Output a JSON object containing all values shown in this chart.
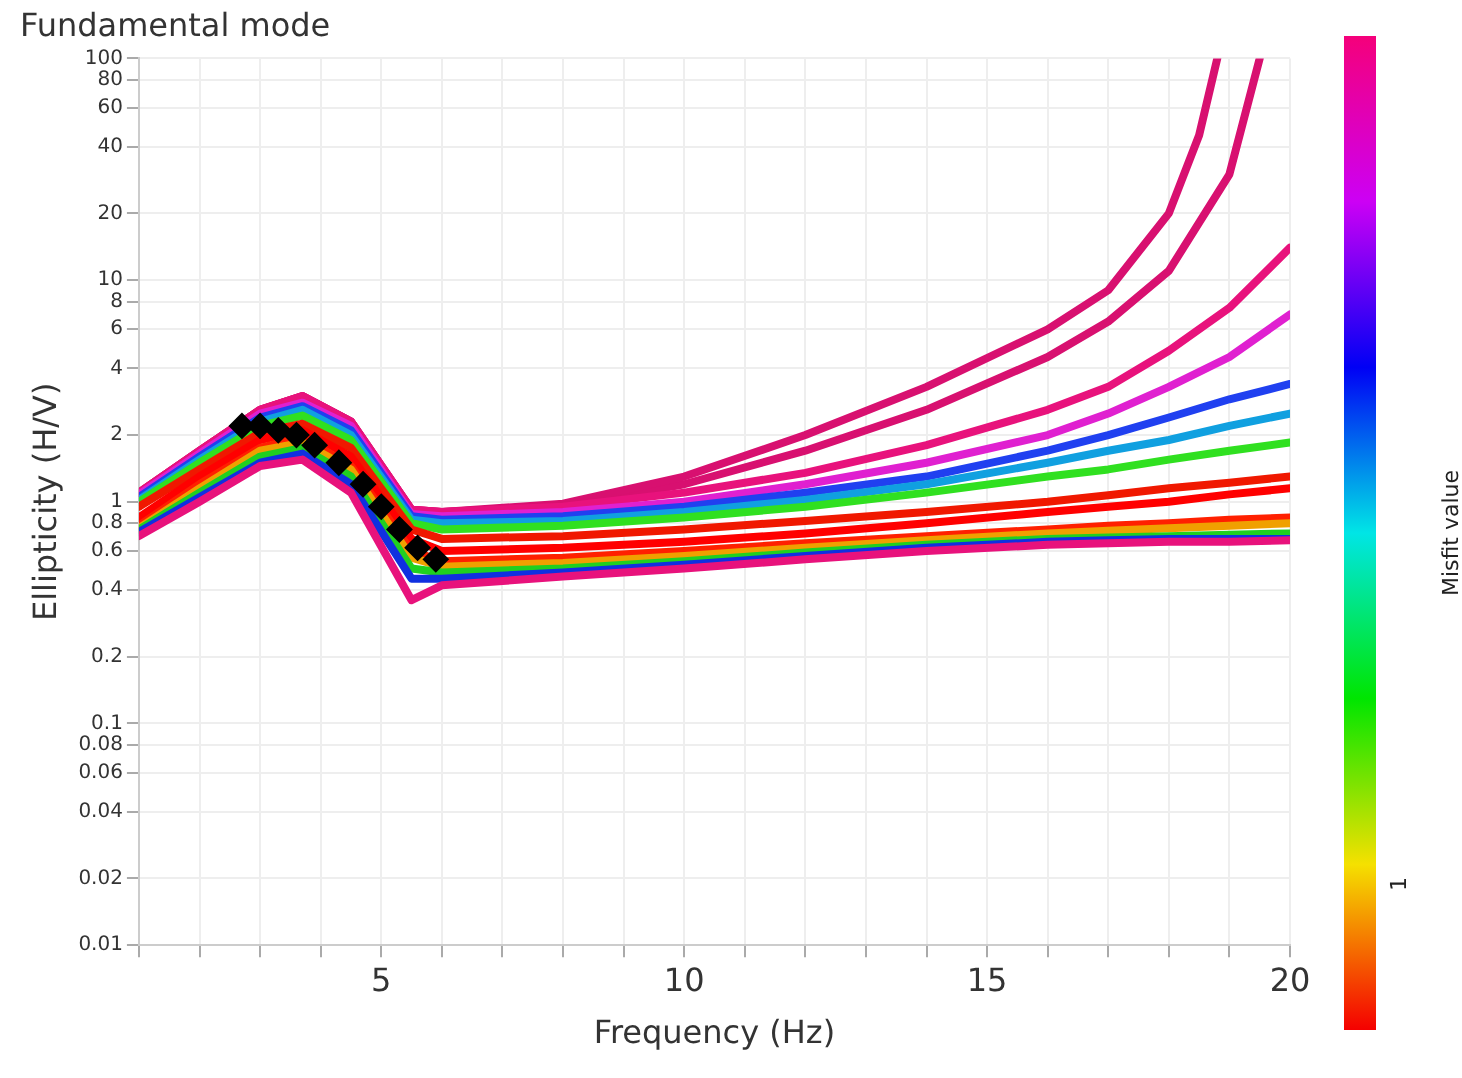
{
  "chart_data": {
    "type": "line",
    "title": "Fundamental mode",
    "xlabel": "Frequency (Hz)",
    "ylabel": "Ellipticity (H/V)",
    "clabel": "Misfit value",
    "x": [
      1,
      2,
      3,
      3.7,
      4.5,
      5.5,
      6,
      8,
      10,
      12,
      14,
      16,
      17,
      18,
      19,
      20
    ],
    "xlim": [
      1,
      20
    ],
    "xticks": [
      {
        "value": 1,
        "label": null
      },
      {
        "value": 2,
        "label": null
      },
      {
        "value": 3,
        "label": null
      },
      {
        "value": 4,
        "label": null
      },
      5,
      {
        "value": 6,
        "label": null
      },
      {
        "value": 7,
        "label": null
      },
      {
        "value": 8,
        "label": null
      },
      {
        "value": 9,
        "label": null
      },
      10,
      {
        "value": 11,
        "label": null
      },
      {
        "value": 12,
        "label": null
      },
      {
        "value": 13,
        "label": null
      },
      {
        "value": 14,
        "label": null
      },
      15,
      {
        "value": 16,
        "label": null
      },
      {
        "value": 17,
        "label": null
      },
      {
        "value": 18,
        "label": null
      },
      {
        "value": 19,
        "label": null
      },
      20
    ],
    "ylim": [
      0.01,
      100
    ],
    "yticks": [
      0.01,
      0.02,
      0.04,
      0.06,
      0.08,
      0.1,
      0.2,
      0.4,
      0.6,
      0.8,
      1,
      2,
      4,
      6,
      8,
      10,
      20,
      40,
      60,
      80,
      100
    ],
    "log": "y",
    "grid": true,
    "legend": false,
    "marker": "none",
    "annotations": [
      "1"
    ],
    "series": [
      {
        "color": "#e8127c",
        "values": [
          0.7,
          1.0,
          1.45,
          1.55,
          1.1,
          0.36,
          0.42,
          0.46,
          0.5,
          0.55,
          0.6,
          0.64,
          0.65,
          0.66,
          0.66,
          0.67
        ]
      },
      {
        "color": "#1030e0",
        "values": [
          0.73,
          1.05,
          1.5,
          1.65,
          1.2,
          0.45,
          0.45,
          0.48,
          0.52,
          0.57,
          0.62,
          0.66,
          0.67,
          0.68,
          0.68,
          0.68
        ]
      },
      {
        "color": "#20d020",
        "values": [
          0.75,
          1.1,
          1.6,
          1.75,
          1.3,
          0.5,
          0.48,
          0.5,
          0.54,
          0.59,
          0.64,
          0.68,
          0.69,
          0.7,
          0.71,
          0.72
        ]
      },
      {
        "color": "#f0a000",
        "values": [
          0.76,
          1.15,
          1.7,
          1.85,
          1.4,
          0.56,
          0.51,
          0.53,
          0.57,
          0.62,
          0.67,
          0.72,
          0.74,
          0.76,
          0.78,
          0.8
        ]
      },
      {
        "color": "#ff2000",
        "values": [
          0.78,
          1.2,
          1.75,
          1.95,
          1.45,
          0.6,
          0.54,
          0.56,
          0.6,
          0.65,
          0.7,
          0.75,
          0.78,
          0.8,
          0.83,
          0.85
        ]
      },
      {
        "color": "#ff0000",
        "values": [
          0.85,
          1.3,
          1.9,
          2.1,
          1.6,
          0.68,
          0.6,
          0.62,
          0.66,
          0.72,
          0.8,
          0.9,
          0.95,
          1.0,
          1.08,
          1.15
        ]
      },
      {
        "color": "#f01800",
        "values": [
          0.95,
          1.4,
          2.05,
          2.25,
          1.75,
          0.75,
          0.68,
          0.7,
          0.75,
          0.82,
          0.9,
          1.0,
          1.07,
          1.15,
          1.22,
          1.3
        ]
      },
      {
        "color": "#30e020",
        "values": [
          1.0,
          1.5,
          2.2,
          2.45,
          1.9,
          0.8,
          0.75,
          0.78,
          0.85,
          0.95,
          1.1,
          1.3,
          1.4,
          1.55,
          1.7,
          1.85
        ]
      },
      {
        "color": "#10a0e0",
        "values": [
          1.02,
          1.55,
          2.3,
          2.6,
          2.0,
          0.83,
          0.8,
          0.82,
          0.9,
          1.02,
          1.2,
          1.5,
          1.7,
          1.9,
          2.2,
          2.5
        ]
      },
      {
        "color": "#2040f0",
        "values": [
          1.05,
          1.6,
          2.4,
          2.7,
          2.1,
          0.86,
          0.83,
          0.86,
          0.95,
          1.1,
          1.3,
          1.7,
          2.0,
          2.4,
          2.9,
          3.4
        ]
      },
      {
        "color": "#e020d0",
        "values": [
          1.08,
          1.65,
          2.5,
          2.8,
          2.2,
          0.88,
          0.86,
          0.9,
          1.0,
          1.2,
          1.5,
          2.0,
          2.5,
          3.3,
          4.5,
          7
        ]
      },
      {
        "color": "#e8127c",
        "values": [
          1.1,
          1.7,
          2.6,
          3.0,
          2.3,
          0.92,
          0.9,
          0.95,
          1.1,
          1.35,
          1.8,
          2.6,
          3.3,
          4.8,
          7.5,
          14
        ]
      },
      {
        "color": "#d81070",
        "x": [
          1,
          2,
          3,
          3.7,
          4.5,
          5.5,
          6,
          8,
          10,
          12,
          14,
          16,
          17,
          18,
          18.5,
          18.8
        ],
        "values": [
          1.1,
          1.7,
          2.6,
          3.0,
          2.3,
          0.92,
          0.9,
          0.98,
          1.3,
          2.0,
          3.3,
          6,
          9,
          20,
          45,
          100
        ]
      },
      {
        "color": "#d81070",
        "x": [
          1,
          2,
          3,
          3.7,
          4.5,
          5.5,
          6,
          8,
          10,
          12,
          14,
          16,
          17,
          18,
          19,
          19.5
        ],
        "values": [
          1.1,
          1.7,
          2.6,
          3.0,
          2.3,
          0.92,
          0.9,
          0.96,
          1.2,
          1.7,
          2.6,
          4.5,
          6.5,
          11,
          30,
          100
        ]
      },
      {
        "type": "scatter",
        "marker": "diamond",
        "color": "#000000",
        "x": [
          2.7,
          3.0,
          3.3,
          3.6,
          3.9,
          4.3,
          4.7,
          5.0,
          5.3,
          5.6,
          5.9
        ],
        "values": [
          2.2,
          2.2,
          2.1,
          2.0,
          1.8,
          1.5,
          1.2,
          0.95,
          0.75,
          0.62,
          0.55
        ]
      }
    ]
  }
}
